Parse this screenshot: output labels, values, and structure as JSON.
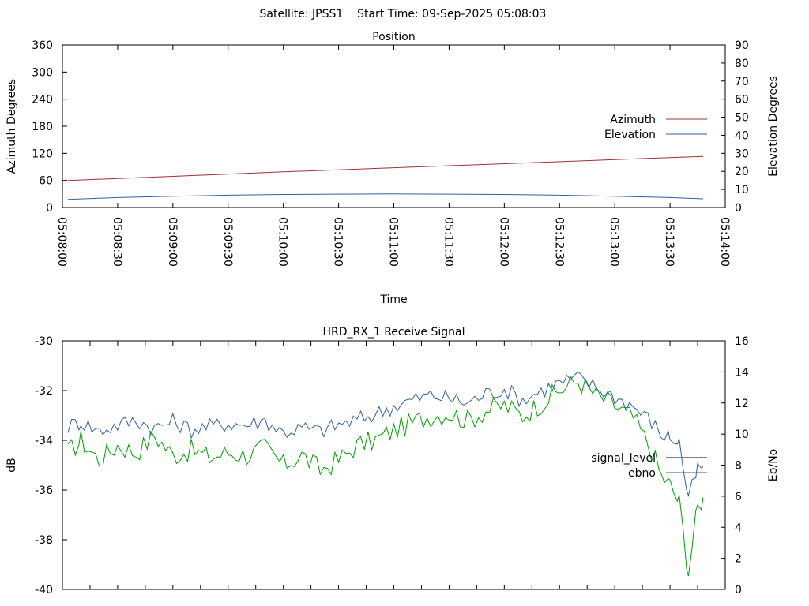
{
  "header": {
    "title": "Satellite: JPSS1    Start Time: 09-Sep-2025 05:08:03"
  },
  "chart_data": [
    {
      "type": "line",
      "title": "Position",
      "xlabel": "Time",
      "ylabel": "Azimuth Degrees",
      "y2label": "Elevation Degrees",
      "ylim": [
        0,
        360
      ],
      "y2lim": [
        0,
        90
      ],
      "yticks": [
        "0",
        "60",
        "120",
        "180",
        "240",
        "300",
        "360"
      ],
      "y2ticks": [
        "0",
        "10",
        "20",
        "30",
        "40",
        "50",
        "60",
        "70",
        "80",
        "90"
      ],
      "xticks": [
        "05:08:00",
        "05:08:30",
        "05:09:00",
        "05:09:30",
        "05:10:00",
        "05:10:30",
        "05:11:00",
        "05:11:30",
        "05:12:00",
        "05:12:30",
        "05:13:00",
        "05:13:30",
        "05:14:00"
      ],
      "xlim": [
        "05:08:00",
        "05:14:00"
      ],
      "grid": false,
      "legend_position": "right",
      "series": [
        {
          "name": "Azimuth",
          "axis": "y1",
          "color": "#a03030",
          "x": [
            "05:08:03",
            "05:09:00",
            "05:10:00",
            "05:11:00",
            "05:12:00",
            "05:13:00",
            "05:13:48"
          ],
          "values": [
            60,
            69,
            79,
            88,
            97,
            106,
            113
          ]
        },
        {
          "name": "Elevation",
          "axis": "y2",
          "color": "#3060a0",
          "x": [
            "05:08:03",
            "05:08:30",
            "05:09:00",
            "05:09:30",
            "05:10:00",
            "05:10:30",
            "05:11:00",
            "05:11:30",
            "05:12:00",
            "05:12:30",
            "05:13:00",
            "05:13:30",
            "05:13:48"
          ],
          "values": [
            4.5,
            5.5,
            6.2,
            6.8,
            7.2,
            7.4,
            7.5,
            7.4,
            7.2,
            6.8,
            6.2,
            5.5,
            4.8
          ]
        }
      ]
    },
    {
      "type": "line",
      "title": "HRD_RX_1 Receive Signal",
      "xlabel": "",
      "ylabel": "dB",
      "y2label": "Eb/No",
      "ylim": [
        -40,
        -30
      ],
      "y2lim": [
        0,
        16
      ],
      "yticks": [
        "-40",
        "-38",
        "-36",
        "-34",
        "-32",
        "-30"
      ],
      "y2ticks": [
        "0",
        "2",
        "4",
        "6",
        "8",
        "10",
        "12",
        "14",
        "16"
      ],
      "xlim": [
        "05:08:00",
        "05:14:00"
      ],
      "grid": false,
      "legend_position": "right",
      "series": [
        {
          "name": "signal_level",
          "axis": "y1",
          "color": "#00a000",
          "legend_color": "#000000",
          "x": [
            "05:08:03",
            "05:08:10",
            "05:08:20",
            "05:08:30",
            "05:08:40",
            "05:08:50",
            "05:09:00",
            "05:09:10",
            "05:09:20",
            "05:09:30",
            "05:09:40",
            "05:09:50",
            "05:10:00",
            "05:10:10",
            "05:10:20",
            "05:10:30",
            "05:10:40",
            "05:10:50",
            "05:11:00",
            "05:11:10",
            "05:11:20",
            "05:11:30",
            "05:11:40",
            "05:11:50",
            "05:12:00",
            "05:12:10",
            "05:12:20",
            "05:12:30",
            "05:12:40",
            "05:12:50",
            "05:13:00",
            "05:13:10",
            "05:13:20",
            "05:13:25",
            "05:13:30",
            "05:13:35",
            "05:13:40",
            "05:13:45",
            "05:13:48"
          ],
          "values": [
            -34.5,
            -34.0,
            -34.8,
            -34.2,
            -34.5,
            -33.8,
            -34.6,
            -34.4,
            -34.7,
            -34.5,
            -34.6,
            -34.3,
            -35.0,
            -34.6,
            -35.2,
            -34.8,
            -34.2,
            -34.0,
            -33.6,
            -33.3,
            -33.0,
            -32.9,
            -33.2,
            -32.8,
            -32.6,
            -33.0,
            -32.5,
            -32.0,
            -31.6,
            -32.2,
            -32.6,
            -33.1,
            -34.4,
            -35.4,
            -35.8,
            -36.5,
            -39.3,
            -36.7,
            -36.3
          ]
        },
        {
          "name": "ebno",
          "axis": "y2",
          "color": "#3060a0",
          "x": [
            "05:08:03",
            "05:08:10",
            "05:08:20",
            "05:08:30",
            "05:08:40",
            "05:08:50",
            "05:09:00",
            "05:09:10",
            "05:09:20",
            "05:09:30",
            "05:09:40",
            "05:09:50",
            "05:10:00",
            "05:10:10",
            "05:10:20",
            "05:10:30",
            "05:10:40",
            "05:10:50",
            "05:11:00",
            "05:11:10",
            "05:11:20",
            "05:11:30",
            "05:11:40",
            "05:11:50",
            "05:12:00",
            "05:12:10",
            "05:12:20",
            "05:12:30",
            "05:12:40",
            "05:12:50",
            "05:13:00",
            "05:13:10",
            "05:13:20",
            "05:13:25",
            "05:13:30",
            "05:13:35",
            "05:13:40",
            "05:13:45",
            "05:13:48"
          ],
          "values": [
            10.5,
            10.8,
            10.2,
            10.6,
            10.9,
            10.4,
            10.8,
            10.3,
            10.5,
            10.7,
            10.6,
            10.9,
            10.1,
            10.4,
            10.2,
            10.6,
            10.9,
            11.3,
            11.8,
            12.2,
            12.5,
            12.3,
            12.0,
            12.6,
            12.9,
            12.2,
            12.8,
            13.3,
            13.6,
            13.0,
            12.4,
            11.8,
            10.8,
            10.0,
            9.8,
            9.5,
            5.8,
            7.7,
            7.9
          ]
        }
      ]
    }
  ]
}
